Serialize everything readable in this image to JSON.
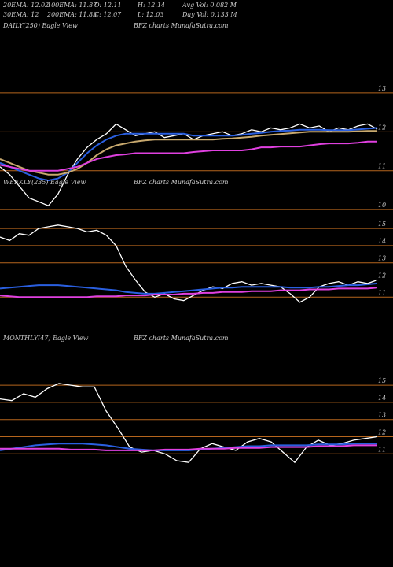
{
  "chart_data": [
    {
      "type": "line",
      "title": "DAILY(250) Eagle  View",
      "subtitle": "BFZ charts MunafaSutra.com",
      "annotations": [
        "20EMA: 12.02",
        "100EMA: 11.87",
        "O: 12.11",
        "H: 12.14",
        "Avg Vol: 0.082  M",
        "30EMA: 12",
        "200EMA: 11.83",
        "C: 12.07",
        "L: 12.03",
        "Day Vol: 0.133  M"
      ],
      "ylim": [
        9.8,
        14.8
      ],
      "yticks": [
        10,
        11,
        12,
        13
      ],
      "line_color": "#b5651d",
      "series": [
        {
          "color": "#ffffff",
          "values": [
            11.1,
            10.9,
            10.6,
            10.3,
            10.2,
            10.1,
            10.4,
            10.9,
            11.3,
            11.6,
            11.8,
            11.95,
            12.2,
            12.05,
            11.9,
            11.95,
            12.0,
            11.85,
            11.9,
            11.95,
            11.8,
            11.9,
            11.95,
            12.0,
            11.9,
            11.95,
            12.05,
            12.0,
            12.1,
            12.05,
            12.1,
            12.2,
            12.1,
            12.15,
            12.0,
            12.1,
            12.05,
            12.15,
            12.2,
            12.07
          ]
        },
        {
          "color": "#2a5fe0",
          "values": [
            11.2,
            11.1,
            11.0,
            10.9,
            10.8,
            10.75,
            10.8,
            10.95,
            11.2,
            11.45,
            11.65,
            11.8,
            11.9,
            11.95,
            11.95,
            11.95,
            11.95,
            11.95,
            11.95,
            11.95,
            11.9,
            11.9,
            11.9,
            11.9,
            11.9,
            11.92,
            11.95,
            11.97,
            12.0,
            12.02,
            12.03,
            12.05,
            12.05,
            12.05,
            12.04,
            12.04,
            12.04,
            12.06,
            12.08,
            12.1
          ]
        },
        {
          "color": "#c8a96e",
          "values": [
            11.3,
            11.2,
            11.1,
            11.0,
            10.95,
            10.9,
            10.9,
            10.95,
            11.05,
            11.2,
            11.4,
            11.55,
            11.65,
            11.7,
            11.75,
            11.78,
            11.8,
            11.8,
            11.8,
            11.8,
            11.8,
            11.8,
            11.8,
            11.82,
            11.83,
            11.85,
            11.87,
            11.9,
            11.92,
            11.94,
            11.96,
            11.98,
            12.0,
            12.0,
            12.0,
            12.0,
            12.0,
            12.01,
            12.02,
            12.02
          ]
        },
        {
          "color": "#e040e0",
          "values": [
            11.15,
            11.1,
            11.05,
            11.0,
            11.0,
            11.0,
            11.0,
            11.05,
            11.1,
            11.2,
            11.3,
            11.35,
            11.4,
            11.42,
            11.45,
            11.45,
            11.45,
            11.45,
            11.45,
            11.45,
            11.48,
            11.5,
            11.52,
            11.52,
            11.52,
            11.52,
            11.55,
            11.6,
            11.6,
            11.62,
            11.62,
            11.62,
            11.65,
            11.68,
            11.7,
            11.7,
            11.7,
            11.72,
            11.75,
            11.75
          ]
        }
      ]
    },
    {
      "type": "line",
      "title": "WEEKLY(235) Eagle  View",
      "subtitle": "BFZ charts MunafaSutra.com",
      "ylim": [
        9.5,
        17.3
      ],
      "yticks": [
        11,
        12,
        13,
        14,
        15
      ],
      "line_color": "#b5651d",
      "series": [
        {
          "color": "#ffffff",
          "values": [
            14.5,
            14.3,
            14.7,
            14.6,
            15.0,
            15.1,
            15.2,
            15.1,
            15.0,
            14.8,
            14.9,
            14.6,
            14.0,
            12.8,
            12.0,
            11.3,
            11.0,
            11.2,
            10.9,
            10.8,
            11.1,
            11.4,
            11.6,
            11.5,
            11.8,
            11.9,
            11.7,
            11.8,
            11.7,
            11.6,
            11.2,
            10.7,
            11.0,
            11.6,
            11.8,
            11.9,
            11.7,
            11.9,
            11.8,
            12.0
          ]
        },
        {
          "color": "#2a5fe0",
          "values": [
            11.5,
            11.55,
            11.6,
            11.65,
            11.7,
            11.7,
            11.7,
            11.65,
            11.6,
            11.55,
            11.5,
            11.45,
            11.4,
            11.3,
            11.25,
            11.2,
            11.2,
            11.25,
            11.3,
            11.35,
            11.4,
            11.45,
            11.5,
            11.55,
            11.55,
            11.6,
            11.6,
            11.6,
            11.6,
            11.6,
            11.55,
            11.55,
            11.55,
            11.6,
            11.6,
            11.65,
            11.7,
            11.7,
            11.75,
            11.8
          ]
        },
        {
          "color": "#e040e0",
          "values": [
            11.1,
            11.05,
            11.0,
            11.0,
            11.0,
            11.0,
            11.0,
            11.0,
            11.0,
            11.0,
            11.05,
            11.05,
            11.05,
            11.1,
            11.1,
            11.1,
            11.15,
            11.15,
            11.15,
            11.2,
            11.2,
            11.25,
            11.25,
            11.3,
            11.3,
            11.3,
            11.35,
            11.35,
            11.35,
            11.4,
            11.4,
            11.4,
            11.45,
            11.45,
            11.45,
            11.5,
            11.5,
            11.5,
            11.5,
            11.55
          ]
        }
      ]
    },
    {
      "type": "line",
      "title": "MONTHLY(47) Eagle  View",
      "subtitle": "BFZ charts MunafaSutra.com",
      "ylim": [
        9.5,
        17.3
      ],
      "yticks": [
        11,
        12,
        13,
        14,
        15
      ],
      "line_color": "#b5651d",
      "series": [
        {
          "color": "#ffffff",
          "values": [
            14.2,
            14.1,
            14.5,
            14.3,
            14.8,
            15.1,
            15.0,
            14.9,
            14.9,
            13.5,
            12.5,
            11.4,
            11.1,
            11.2,
            11.0,
            10.6,
            10.5,
            11.3,
            11.6,
            11.4,
            11.2,
            11.7,
            11.9,
            11.7,
            11.1,
            10.5,
            11.4,
            11.8,
            11.5,
            11.6,
            11.8,
            11.9,
            12.0
          ]
        },
        {
          "color": "#2a5fe0",
          "values": [
            11.2,
            11.3,
            11.4,
            11.5,
            11.55,
            11.6,
            11.6,
            11.6,
            11.55,
            11.5,
            11.4,
            11.3,
            11.25,
            11.2,
            11.2,
            11.2,
            11.2,
            11.25,
            11.3,
            11.35,
            11.4,
            11.45,
            11.45,
            11.5,
            11.5,
            11.5,
            11.5,
            11.55,
            11.55,
            11.55,
            11.6,
            11.6,
            11.6
          ]
        },
        {
          "color": "#e040e0",
          "values": [
            11.3,
            11.3,
            11.3,
            11.3,
            11.3,
            11.3,
            11.25,
            11.25,
            11.25,
            11.2,
            11.2,
            11.2,
            11.2,
            11.2,
            11.25,
            11.25,
            11.25,
            11.3,
            11.3,
            11.3,
            11.35,
            11.35,
            11.35,
            11.4,
            11.4,
            11.4,
            11.4,
            11.45,
            11.45,
            11.45,
            11.5,
            11.5,
            11.5
          ]
        }
      ]
    }
  ]
}
